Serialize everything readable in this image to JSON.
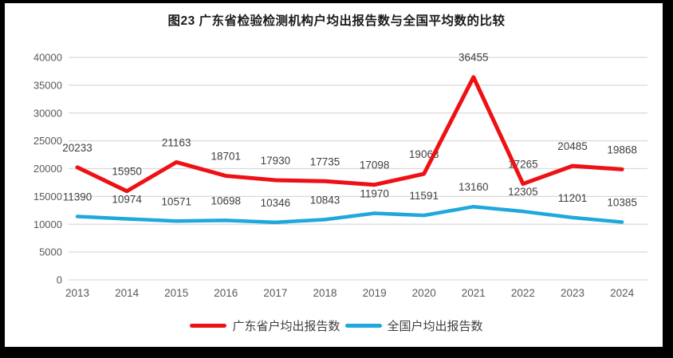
{
  "figure": {
    "title": "图23  广东省检验检测机构户均出报告数与全国平均数的比较"
  },
  "chart_data": {
    "type": "line",
    "title": "图23  广东省检验检测机构户均出报告数与全国平均数的比较",
    "categories": [
      "2013",
      "2014",
      "2015",
      "2016",
      "2017",
      "2018",
      "2019",
      "2020",
      "2021",
      "2022",
      "2023",
      "2024"
    ],
    "series": [
      {
        "name": "广东省户均出报告数",
        "color": "#ee1014",
        "stroke_width": 5,
        "values": [
          20233,
          15950,
          21163,
          18701,
          17930,
          17735,
          17098,
          19063,
          36455,
          17265,
          20485,
          19868
        ]
      },
      {
        "name": "全国户均出报告数",
        "color": "#1ea8dc",
        "stroke_width": 4.5,
        "values": [
          11390,
          10974,
          10571,
          10698,
          10346,
          10843,
          11970,
          11591,
          13160,
          12305,
          11201,
          10385
        ]
      }
    ],
    "ylim": [
      0,
      40000
    ],
    "ytick_step": 5000,
    "ytick_labels": [
      "0",
      "5000",
      "10000",
      "15000",
      "20000",
      "25000",
      "30000",
      "35000",
      "40000"
    ],
    "grid": true,
    "data_labels": true,
    "legend_position": "bottom"
  },
  "colors": {
    "grid_line": "#d9d9d9",
    "tick_text": "#595959",
    "data_label_text": "#3f3f3f",
    "title_text": "#1a1a1a",
    "legend_text": "#3f3f3f",
    "frame": "#000000",
    "background": "#ffffff"
  }
}
